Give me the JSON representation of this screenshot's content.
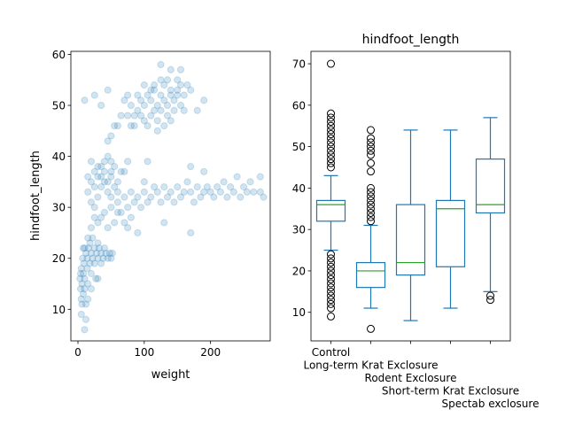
{
  "chart_data": [
    {
      "type": "scatter",
      "xlabel": "weight",
      "ylabel": "hindfoot_length",
      "xlim": [
        -10.7,
        290
      ],
      "ylim": [
        3.8,
        60.6
      ],
      "xticks": [
        0,
        100,
        200
      ],
      "yticks": [
        10,
        20,
        30,
        40,
        50,
        60
      ],
      "grid": false,
      "color": "#1f77b4",
      "alpha": 0.2,
      "points": [
        [
          75,
          48
        ],
        [
          80,
          50
        ],
        [
          85,
          46
        ],
        [
          90,
          49
        ],
        [
          95,
          51
        ],
        [
          100,
          47
        ],
        [
          100,
          50
        ],
        [
          105,
          52
        ],
        [
          110,
          48
        ],
        [
          110,
          51
        ],
        [
          115,
          49
        ],
        [
          115,
          53
        ],
        [
          120,
          50
        ],
        [
          120,
          47
        ],
        [
          125,
          52
        ],
        [
          125,
          49
        ],
        [
          130,
          51
        ],
        [
          130,
          54
        ],
        [
          135,
          50
        ],
        [
          135,
          48
        ],
        [
          140,
          52
        ],
        [
          140,
          53
        ],
        [
          145,
          51
        ],
        [
          145,
          49
        ],
        [
          150,
          53
        ],
        [
          150,
          52
        ],
        [
          155,
          54
        ],
        [
          155,
          50
        ],
        [
          160,
          52
        ],
        [
          165,
          54
        ],
        [
          170,
          53
        ],
        [
          95,
          48
        ],
        [
          105,
          46
        ],
        [
          90,
          52
        ],
        [
          85,
          48
        ],
        [
          120,
          45
        ],
        [
          130,
          46
        ],
        [
          140,
          47
        ],
        [
          60,
          46
        ],
        [
          65,
          48
        ],
        [
          70,
          51
        ],
        [
          50,
          44
        ],
        [
          55,
          46
        ],
        [
          45,
          43
        ],
        [
          35,
          50
        ],
        [
          25,
          52
        ],
        [
          10,
          51
        ],
        [
          45,
          53
        ],
        [
          125,
          58
        ],
        [
          140,
          57
        ],
        [
          155,
          57
        ],
        [
          190,
          51
        ],
        [
          180,
          49
        ],
        [
          115,
          54
        ],
        [
          100,
          54
        ],
        [
          110,
          53
        ],
        [
          135,
          55
        ],
        [
          150,
          55
        ],
        [
          160,
          49
        ],
        [
          75,
          52
        ],
        [
          80,
          46
        ],
        [
          125,
          55
        ],
        [
          15,
          33
        ],
        [
          20,
          35
        ],
        [
          20,
          39
        ],
        [
          25,
          34
        ],
        [
          25,
          37
        ],
        [
          30,
          36
        ],
        [
          30,
          32
        ],
        [
          35,
          38
        ],
        [
          35,
          34
        ],
        [
          40,
          39
        ],
        [
          40,
          35
        ],
        [
          45,
          40
        ],
        [
          45,
          33
        ],
        [
          50,
          37
        ],
        [
          50,
          36
        ],
        [
          55,
          34
        ],
        [
          55,
          38
        ],
        [
          60,
          35
        ],
        [
          60,
          33
        ],
        [
          65,
          37
        ],
        [
          20,
          31
        ],
        [
          25,
          30
        ],
        [
          30,
          38
        ],
        [
          35,
          36
        ],
        [
          40,
          37
        ],
        [
          45,
          35
        ],
        [
          50,
          39
        ],
        [
          50,
          32
        ],
        [
          15,
          36
        ],
        [
          70,
          37
        ],
        [
          75,
          39
        ],
        [
          60,
          31
        ],
        [
          65,
          29
        ],
        [
          70,
          32
        ],
        [
          75,
          30
        ],
        [
          80,
          33
        ],
        [
          85,
          31
        ],
        [
          90,
          32
        ],
        [
          95,
          30
        ],
        [
          100,
          33
        ],
        [
          105,
          31
        ],
        [
          110,
          32
        ],
        [
          115,
          34
        ],
        [
          120,
          33
        ],
        [
          125,
          31
        ],
        [
          130,
          34
        ],
        [
          135,
          32
        ],
        [
          140,
          33
        ],
        [
          145,
          31
        ],
        [
          150,
          34
        ],
        [
          155,
          32
        ],
        [
          160,
          33
        ],
        [
          165,
          35
        ],
        [
          170,
          33
        ],
        [
          175,
          31
        ],
        [
          180,
          34
        ],
        [
          185,
          32
        ],
        [
          190,
          33
        ],
        [
          195,
          34
        ],
        [
          200,
          33
        ],
        [
          205,
          32
        ],
        [
          210,
          34
        ],
        [
          215,
          33
        ],
        [
          220,
          35
        ],
        [
          225,
          32
        ],
        [
          230,
          34
        ],
        [
          235,
          33
        ],
        [
          240,
          36
        ],
        [
          245,
          32
        ],
        [
          250,
          34
        ],
        [
          255,
          33
        ],
        [
          260,
          35
        ],
        [
          265,
          33
        ],
        [
          275,
          33
        ],
        [
          280,
          32
        ],
        [
          275,
          36
        ],
        [
          170,
          38
        ],
        [
          190,
          37
        ],
        [
          130,
          27
        ],
        [
          170,
          25
        ],
        [
          90,
          25
        ],
        [
          75,
          26
        ],
        [
          105,
          39
        ],
        [
          80,
          28
        ],
        [
          100,
          35
        ],
        [
          70,
          27
        ],
        [
          60,
          29
        ],
        [
          50,
          30
        ],
        [
          40,
          29
        ],
        [
          35,
          28
        ],
        [
          30,
          27
        ],
        [
          25,
          28
        ],
        [
          20,
          26
        ],
        [
          45,
          26
        ],
        [
          55,
          27
        ],
        [
          3,
          16
        ],
        [
          4,
          14
        ],
        [
          5,
          18
        ],
        [
          5,
          12
        ],
        [
          6,
          15
        ],
        [
          7,
          20
        ],
        [
          8,
          17
        ],
        [
          8,
          13
        ],
        [
          9,
          19
        ],
        [
          10,
          16
        ],
        [
          10,
          22
        ],
        [
          12,
          21
        ],
        [
          12,
          11
        ],
        [
          14,
          20
        ],
        [
          14,
          18
        ],
        [
          15,
          24
        ],
        [
          16,
          22
        ],
        [
          18,
          19
        ],
        [
          18,
          23
        ],
        [
          20,
          21
        ],
        [
          20,
          17
        ],
        [
          22,
          24
        ],
        [
          22,
          20
        ],
        [
          25,
          22
        ],
        [
          25,
          19
        ],
        [
          28,
          21
        ],
        [
          30,
          20
        ],
        [
          30,
          23
        ],
        [
          32,
          22
        ],
        [
          35,
          21
        ],
        [
          35,
          19
        ],
        [
          38,
          20
        ],
        [
          40,
          22
        ],
        [
          42,
          21
        ],
        [
          45,
          20
        ],
        [
          48,
          21
        ],
        [
          50,
          20
        ],
        [
          52,
          21
        ],
        [
          27,
          16
        ],
        [
          30,
          16
        ],
        [
          20,
          14
        ],
        [
          15,
          12
        ],
        [
          10,
          14
        ],
        [
          5,
          9
        ],
        [
          12,
          8
        ],
        [
          10,
          6
        ],
        [
          6,
          11
        ],
        [
          4,
          17
        ],
        [
          8,
          22
        ],
        [
          15,
          15
        ]
      ]
    },
    {
      "type": "box",
      "title": "hindfoot_length",
      "ylim": [
        3.1,
        73
      ],
      "yticks": [
        10,
        20,
        30,
        40,
        50,
        60,
        70
      ],
      "grid": false,
      "box_color": "#1f77b4",
      "median_color": "#2ca02c",
      "categories": [
        "Control",
        "Long-term Krat Exclosure",
        "Rodent Exclosure",
        "Short-term Krat Exclosure",
        "Spectab exclosure"
      ],
      "boxes": [
        {
          "whislo": 25,
          "q1": 32,
          "med": 36,
          "q3": 37,
          "whishi": 43,
          "fliers": [
            70,
            58,
            57,
            56,
            55,
            54,
            53,
            52,
            51,
            50,
            49,
            48,
            47,
            46,
            45,
            24,
            23,
            22,
            21,
            20,
            19,
            18,
            17,
            16,
            15,
            14,
            13,
            12,
            11,
            9
          ]
        },
        {
          "whislo": 11,
          "q1": 16,
          "med": 20,
          "q3": 22,
          "whishi": 31,
          "fliers": [
            54,
            52,
            51,
            50,
            49,
            48,
            46,
            44,
            40,
            39,
            38,
            37,
            36,
            35,
            34,
            33,
            32,
            6
          ]
        },
        {
          "whislo": 8,
          "q1": 19,
          "med": 22,
          "q3": 36,
          "whishi": 54,
          "fliers": []
        },
        {
          "whislo": 11,
          "q1": 21,
          "med": 35,
          "q3": 37,
          "whishi": 54,
          "fliers": []
        },
        {
          "whislo": 15,
          "q1": 34,
          "med": 36,
          "q3": 47,
          "whishi": 57,
          "fliers": [
            14,
            13
          ]
        }
      ]
    }
  ]
}
